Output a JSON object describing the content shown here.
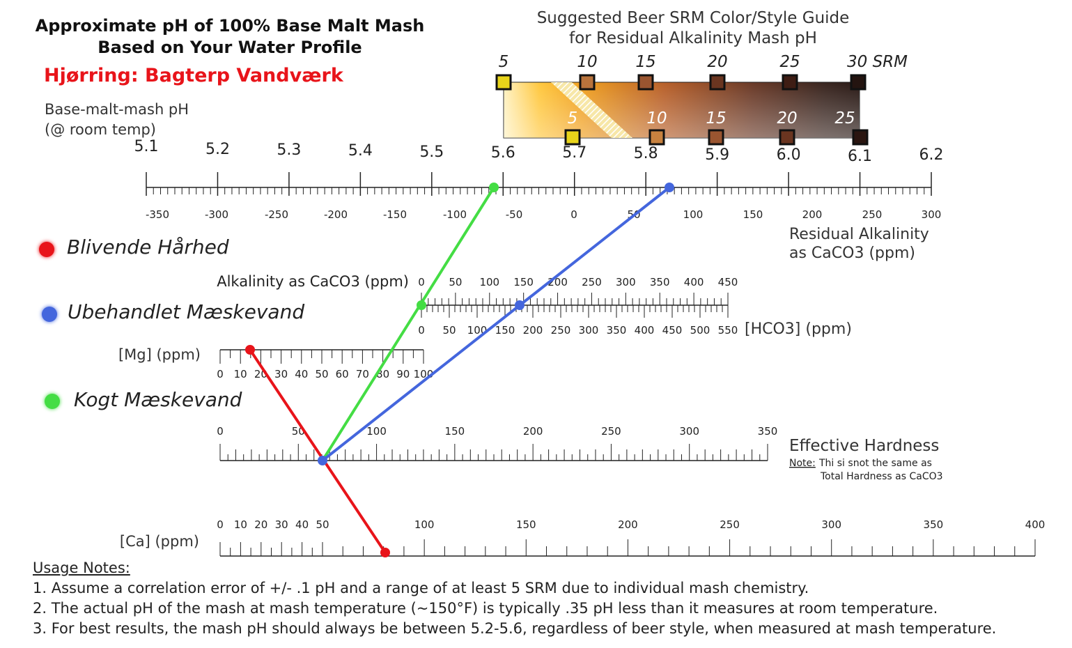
{
  "title_line1": "Approximate pH of 100% Base Malt Mash",
  "title_line2": "Based on Your Water Profile",
  "location": "Hjørring: Bagterp Vandværk",
  "guide_title_line1": "Suggested Beer SRM Color/Style Guide",
  "guide_title_line2": "for Residual Alkalinity Mash pH",
  "ph_label_line1": "Base-malt-mash pH",
  "ph_label_line2": "(@ room temp)",
  "srm_top": [
    {
      "label": "5",
      "color": "#e8d41a"
    },
    {
      "label": "10",
      "color": "#b9733c"
    },
    {
      "label": "15",
      "color": "#9a5530"
    },
    {
      "label": "20",
      "color": "#6a3520"
    },
    {
      "label": "25",
      "color": "#3e1d14"
    },
    {
      "label": "30 SRM",
      "color": "#241410"
    }
  ],
  "srm_bottom": [
    {
      "label": "5",
      "color": "#e8d41a"
    },
    {
      "label": "10",
      "color": "#c8823f"
    },
    {
      "label": "15",
      "color": "#9a5530"
    },
    {
      "label": "20",
      "color": "#6a3520"
    },
    {
      "label": "25",
      "color": "#2a1510"
    }
  ],
  "ph_scale": [
    "5.1",
    "5.2",
    "5.3",
    "5.4",
    "5.5",
    "5.6",
    "5.7",
    "5.8",
    "5.9",
    "6.0",
    "6.1",
    "6.2"
  ],
  "ra_scale": [
    "-350",
    "-300",
    "-250",
    "-200",
    "-150",
    "-100",
    "-50",
    "0",
    "50",
    "100",
    "150",
    "200",
    "250",
    "300"
  ],
  "ra_label_line1": "Residual Alkalinity",
  "ra_label_line2": "as CaCO3 (ppm)",
  "alk_label": "Alkalinity as CaCO3 (ppm)",
  "alk_scale": [
    "0",
    "50",
    "100",
    "150",
    "200",
    "250",
    "300",
    "350",
    "400",
    "450"
  ],
  "hco3_scale": [
    "0",
    "50",
    "100",
    "150",
    "200",
    "250",
    "300",
    "350",
    "400",
    "450",
    "500",
    "550"
  ],
  "hco3_label": "[HCO3] (ppm)",
  "mg_label": "[Mg] (ppm)",
  "mg_scale": [
    "0",
    "10",
    "20",
    "30",
    "40",
    "50",
    "60",
    "70",
    "80",
    "90",
    "100"
  ],
  "eh_scale": [
    "0",
    "50",
    "100",
    "150",
    "200",
    "250",
    "300",
    "350"
  ],
  "eh_label": "Effective Hardness",
  "eh_note_prefix": "Note:",
  "eh_note_line1": "Thi si snot the same as",
  "eh_note_line2": "Total Hardness as CaCO3",
  "ca_label": "[Ca] (ppm)",
  "ca_scale": [
    "0",
    "10",
    "20",
    "30",
    "40",
    "50",
    "100",
    "150",
    "200",
    "250",
    "300",
    "350",
    "400"
  ],
  "legend": [
    {
      "label": "Blivende Hårhed",
      "color": "#e8141a"
    },
    {
      "label": "Ubehandlet Mæskevand",
      "color": "#4466dd"
    },
    {
      "label": "Kogt Mæskevand",
      "color": "#44dd44"
    }
  ],
  "notes_heading": "Usage Notes:",
  "notes": [
    "1. Assume a correlation error of +/- .1 pH and a range of at least 5 SRM due to individual mash chemistry.",
    "2. The actual pH of the mash at mash temperature (~150°F) is typically .35 pH less than it measures at room temperature.",
    "3. For best results, the mash pH should always be between 5.2-5.6, regardless of beer style, when measured at mash temperature."
  ]
}
